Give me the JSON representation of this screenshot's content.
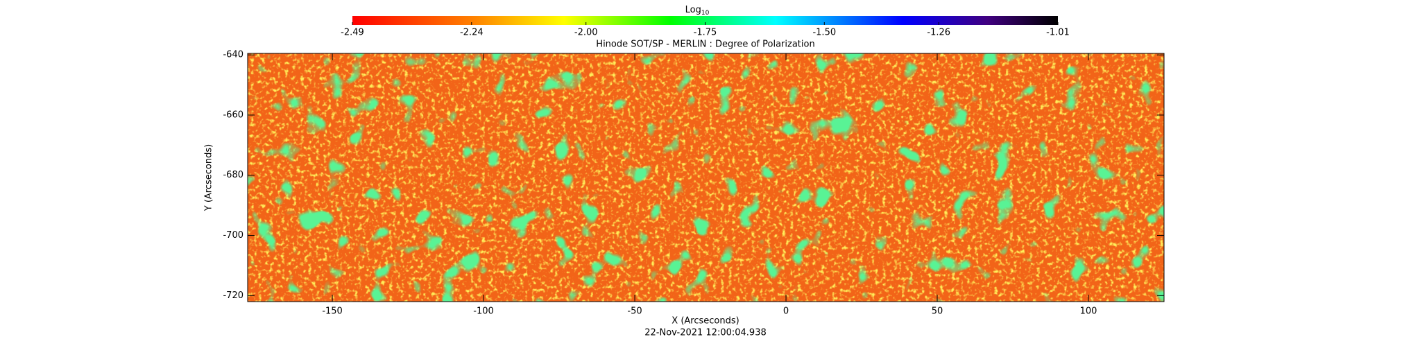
{
  "chart_data": {
    "type": "heatmap",
    "title": "Hinode SOT/SP - MERLIN : Degree of Polarization",
    "x_label": "X (Arcseconds)",
    "y_label": "Y (Arcseconds)",
    "timestamp": "22-Nov-2021 12:00:04.938",
    "xlim": [
      -178,
      125
    ],
    "xticks": [
      -150,
      -100,
      -50,
      0,
      50,
      100
    ],
    "ylim": [
      -722,
      -639.5
    ],
    "yticks": [
      -640,
      -660,
      -680,
      -700,
      -720
    ],
    "colorbar": {
      "label": "Log",
      "label_subscript": "10",
      "clim": [
        -2.49,
        -1.01
      ],
      "ticks": [
        -2.49,
        -2.24,
        {
          "value": -2,
          "label": "-2.00"
        },
        -1.75,
        {
          "value": -1.5,
          "label": "-1.50"
        },
        -1.26,
        -1.01
      ]
    }
  }
}
